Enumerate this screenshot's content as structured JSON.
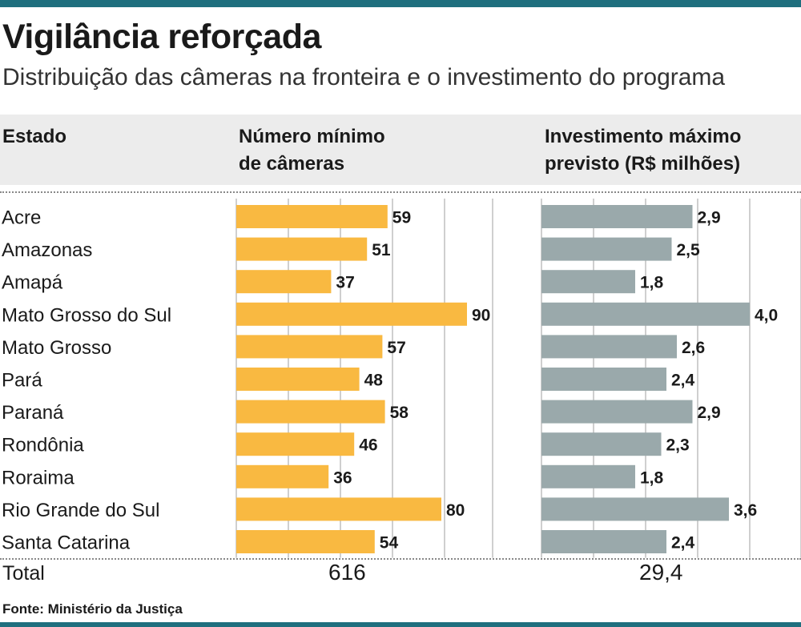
{
  "header": {
    "title": "Vigilância reforçada",
    "subtitle": "Distribuição das câmeras na fronteira e o investimento do programa"
  },
  "columns": {
    "state": "Estado",
    "cameras_line1": "Número mínimo",
    "cameras_line2": "de câmeras",
    "investment_line1": "Investimento máximo",
    "investment_line2": "previsto (R$ milhões)"
  },
  "totals": {
    "label": "Total",
    "cameras": "616",
    "investment": "29,4"
  },
  "footer": {
    "source": "Fonte: Ministério da Justiça"
  },
  "colors": {
    "cameras_bar": "#f9b941",
    "investment_bar": "#9aa9ab",
    "accent": "#1f6f7e"
  },
  "chart_data": [
    {
      "type": "bar",
      "orientation": "horizontal",
      "title": "Número mínimo de câmeras",
      "categories": [
        "Acre",
        "Amazonas",
        "Amapá",
        "Mato Grosso do Sul",
        "Mato Grosso",
        "Pará",
        "Paraná",
        "Rondônia",
        "Roraima",
        "Rio Grande do Sul",
        "Santa Catarina"
      ],
      "values": [
        59,
        51,
        37,
        90,
        57,
        48,
        58,
        46,
        36,
        80,
        54
      ],
      "labels": [
        "59",
        "51",
        "37",
        "90",
        "57",
        "48",
        "58",
        "46",
        "36",
        "80",
        "54"
      ],
      "xlim": [
        0,
        100
      ],
      "total": 616
    },
    {
      "type": "bar",
      "orientation": "horizontal",
      "title": "Investimento máximo previsto (R$ milhões)",
      "categories": [
        "Acre",
        "Amazonas",
        "Amapá",
        "Mato Grosso do Sul",
        "Mato Grosso",
        "Pará",
        "Paraná",
        "Rondônia",
        "Roraima",
        "Rio Grande do Sul",
        "Santa Catarina"
      ],
      "values": [
        2.9,
        2.5,
        1.8,
        4.0,
        2.6,
        2.4,
        2.9,
        2.3,
        1.8,
        3.6,
        2.4
      ],
      "labels": [
        "2,9",
        "2,5",
        "1,8",
        "4,0",
        "2,6",
        "2,4",
        "2,9",
        "2,3",
        "1,8",
        "3,6",
        "2,4"
      ],
      "xlim": [
        0,
        4.5
      ],
      "total": 29.4
    }
  ]
}
